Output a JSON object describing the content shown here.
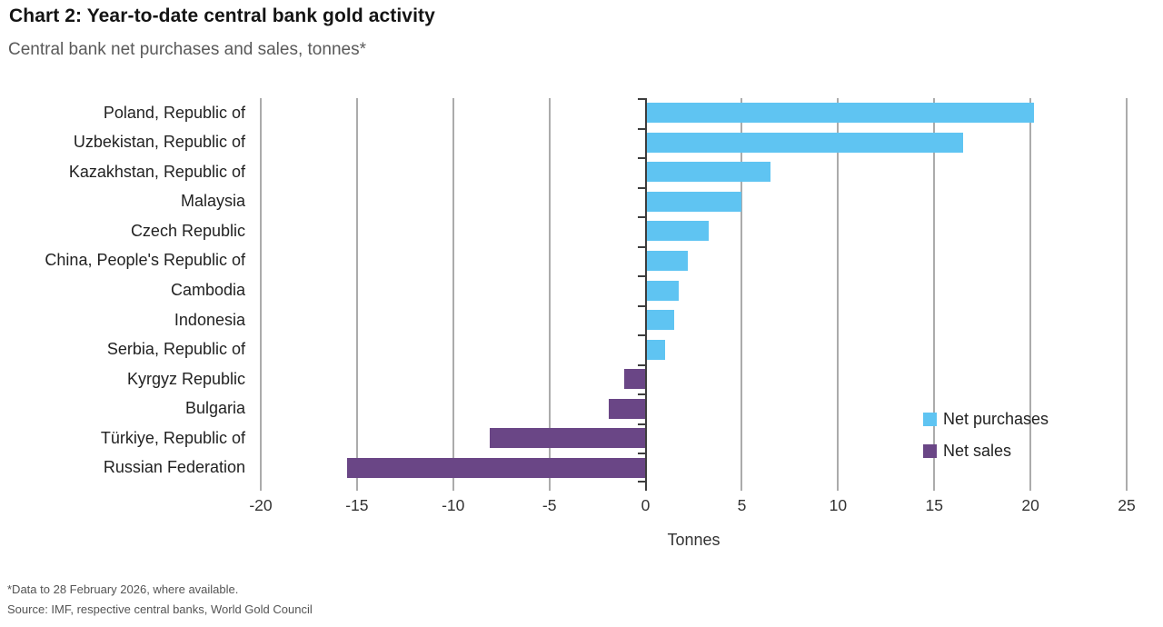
{
  "header": {
    "title": "Chart 2: Year-to-date central bank gold activity",
    "subtitle": "Central bank net purchases and sales, tonnes*"
  },
  "chart_data": {
    "type": "bar",
    "orientation": "horizontal",
    "title": "Chart 2: Year-to-date central bank gold activity",
    "subtitle": "Central bank net purchases and sales, tonnes*",
    "categories": [
      "Poland, Republic of",
      "Uzbekistan, Republic of",
      "Kazakhstan, Republic of",
      "Malaysia",
      "Czech Republic",
      "China, People's Republic of",
      "Cambodia",
      "Indonesia",
      "Serbia, Republic of",
      "Kyrgyz Republic",
      "Bulgaria",
      "Türkiye, Republic of",
      "Russian Federation"
    ],
    "values": [
      20.2,
      16.5,
      6.5,
      5.0,
      3.3,
      2.2,
      1.7,
      1.5,
      1.0,
      -1.1,
      -1.9,
      -8.1,
      -15.5
    ],
    "xlabel": "Tonnes",
    "xlim": [
      -20,
      25
    ],
    "xticks": [
      -20,
      -15,
      -10,
      -5,
      0,
      5,
      10,
      15,
      20,
      25
    ],
    "grid": true,
    "legend_position": "right-inside",
    "legend": [
      {
        "label": "Net purchases",
        "color": "#5fc4f2"
      },
      {
        "label": "Net sales",
        "color": "#6a4686"
      }
    ],
    "colors": {
      "positive": "#5fc4f2",
      "negative": "#6a4686",
      "grid": "#ababab",
      "axis": "#3d3d3d"
    }
  },
  "footnotes": {
    "note": "*Data to 28 February 2026, where available.",
    "source": "Source: IMF, respective central banks, World Gold Council"
  }
}
